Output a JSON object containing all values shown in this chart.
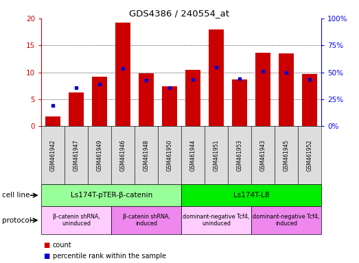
{
  "title": "GDS4386 / 240554_at",
  "samples": [
    "GSM461942",
    "GSM461947",
    "GSM461949",
    "GSM461946",
    "GSM461948",
    "GSM461950",
    "GSM461944",
    "GSM461951",
    "GSM461953",
    "GSM461943",
    "GSM461945",
    "GSM461952"
  ],
  "count_values": [
    1.8,
    6.3,
    9.2,
    19.2,
    9.8,
    7.4,
    10.4,
    17.9,
    8.7,
    13.6,
    13.5,
    9.7
  ],
  "percentile_values": [
    3.8,
    7.1,
    7.8,
    10.7,
    8.5,
    7.1,
    8.7,
    11.0,
    8.8,
    10.2,
    9.9,
    8.7
  ],
  "red_color": "#CC0000",
  "blue_color": "#0000CC",
  "sample_box_color": "#DDDDDD",
  "cell_line_groups": [
    {
      "label": "Ls174T-pTER-β-catenin",
      "start": 0,
      "end": 5,
      "color": "#99FF99"
    },
    {
      "label": "Ls174T-L8",
      "start": 6,
      "end": 11,
      "color": "#00EE00"
    }
  ],
  "protocol_groups": [
    {
      "label": "β-catenin shRNA,\nuninduced",
      "start": 0,
      "end": 2,
      "color": "#FFCCFF"
    },
    {
      "label": "β-catenin shRNA,\ninduced",
      "start": 3,
      "end": 5,
      "color": "#EE88EE"
    },
    {
      "label": "dominant-negative Tcf4,\nuninduced",
      "start": 6,
      "end": 8,
      "color": "#FFCCFF"
    },
    {
      "label": "dominant-negative Tcf4,\ninduced",
      "start": 9,
      "end": 11,
      "color": "#EE88EE"
    }
  ],
  "ylim_left": [
    0,
    20
  ],
  "ylim_right": [
    0,
    100
  ],
  "yticks_left": [
    0,
    5,
    10,
    15,
    20
  ],
  "yticks_right": [
    0,
    25,
    50,
    75,
    100
  ],
  "cell_line_label": "cell line",
  "protocol_label": "protocol",
  "legend_count": "count",
  "legend_pct": "percentile rank within the sample"
}
